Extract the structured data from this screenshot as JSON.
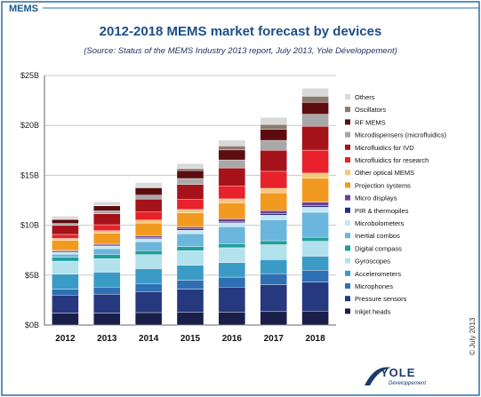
{
  "header": {
    "label": "MEMS"
  },
  "copyright": "© July 2013",
  "logo": {
    "word": "YOLE",
    "sub": "Développement"
  },
  "colors": {
    "frame": "#2a6fa8",
    "grid": "#c8c8c8",
    "background": "#ffffff"
  },
  "chart_data": {
    "type": "bar",
    "stacked": true,
    "title": "2012-2018 MEMS market forecast by devices",
    "subtitle": "(Source: Status of the MEMS Industry 2013 report, July 2013, Yole Développement)",
    "xlabel": "",
    "ylabel": "",
    "ylim": [
      0,
      25
    ],
    "yticks": [
      0,
      5,
      10,
      15,
      20,
      25
    ],
    "ytick_labels": [
      "$0B",
      "$5B",
      "$10B",
      "$15B",
      "$20B",
      "$25B"
    ],
    "grid": true,
    "legend_position": "right",
    "categories": [
      "2012",
      "2013",
      "2014",
      "2015",
      "2016",
      "2017",
      "2018"
    ],
    "series": [
      {
        "name": "Inkjet heads",
        "color": "#1a1f4a",
        "values": [
          1.2,
          1.2,
          1.25,
          1.3,
          1.3,
          1.35,
          1.4
        ]
      },
      {
        "name": "Pressure sensors",
        "color": "#26387e",
        "values": [
          1.8,
          1.9,
          2.1,
          2.3,
          2.5,
          2.7,
          2.9
        ]
      },
      {
        "name": "Microphones",
        "color": "#2f6fb3",
        "values": [
          0.6,
          0.7,
          0.8,
          0.9,
          1.0,
          1.1,
          1.2
        ]
      },
      {
        "name": "Accelerometers",
        "color": "#3a9bc6",
        "values": [
          1.5,
          1.5,
          1.5,
          1.5,
          1.45,
          1.4,
          1.4
        ]
      },
      {
        "name": "Gyroscopes",
        "color": "#b3e1ec",
        "values": [
          1.3,
          1.35,
          1.4,
          1.45,
          1.5,
          1.5,
          1.5
        ]
      },
      {
        "name": "Digital compass",
        "color": "#1f9f9a",
        "values": [
          0.4,
          0.4,
          0.4,
          0.4,
          0.4,
          0.4,
          0.4
        ]
      },
      {
        "name": "Inertial combos",
        "color": "#6ab6dc",
        "values": [
          0.3,
          0.6,
          0.9,
          1.3,
          1.7,
          2.1,
          2.5
        ]
      },
      {
        "name": "Microbolometers",
        "color": "#c7e6f3",
        "values": [
          0.2,
          0.25,
          0.3,
          0.35,
          0.4,
          0.45,
          0.5
        ]
      },
      {
        "name": "PIR & thermopiles",
        "color": "#2b2f80",
        "values": [
          0.1,
          0.1,
          0.12,
          0.13,
          0.14,
          0.15,
          0.17
        ]
      },
      {
        "name": "Micro displays",
        "color": "#6a3f9a",
        "values": [
          0.08,
          0.1,
          0.15,
          0.2,
          0.25,
          0.3,
          0.35
        ]
      },
      {
        "name": "Projection systems",
        "color": "#f29a1f",
        "values": [
          1.0,
          1.1,
          1.3,
          1.4,
          1.6,
          1.8,
          2.4
        ]
      },
      {
        "name": "Other optical MEMS",
        "color": "#f6c77a",
        "values": [
          0.2,
          0.25,
          0.3,
          0.35,
          0.4,
          0.45,
          0.5
        ]
      },
      {
        "name": "Microfluidics for research",
        "color": "#e8212a",
        "values": [
          0.4,
          0.6,
          0.8,
          1.0,
          1.3,
          1.7,
          2.3
        ]
      },
      {
        "name": "Microfluidics for IVD",
        "color": "#a5121a",
        "values": [
          0.9,
          1.1,
          1.3,
          1.5,
          1.8,
          2.1,
          2.4
        ]
      },
      {
        "name": "Microdispensers (microfluidics)",
        "color": "#a8a8a8",
        "values": [
          0.2,
          0.3,
          0.4,
          0.6,
          0.8,
          1.0,
          1.2
        ]
      },
      {
        "name": "RF MEMS",
        "color": "#5c0d10",
        "values": [
          0.4,
          0.5,
          0.7,
          0.8,
          1.0,
          1.1,
          1.2
        ]
      },
      {
        "name": "Oscillators",
        "color": "#8b7b6e",
        "values": [
          0.02,
          0.05,
          0.1,
          0.2,
          0.4,
          0.5,
          0.6
        ]
      },
      {
        "name": "Others",
        "color": "#d9d9d9",
        "values": [
          0.3,
          0.35,
          0.45,
          0.5,
          0.6,
          0.7,
          0.8
        ]
      }
    ]
  }
}
